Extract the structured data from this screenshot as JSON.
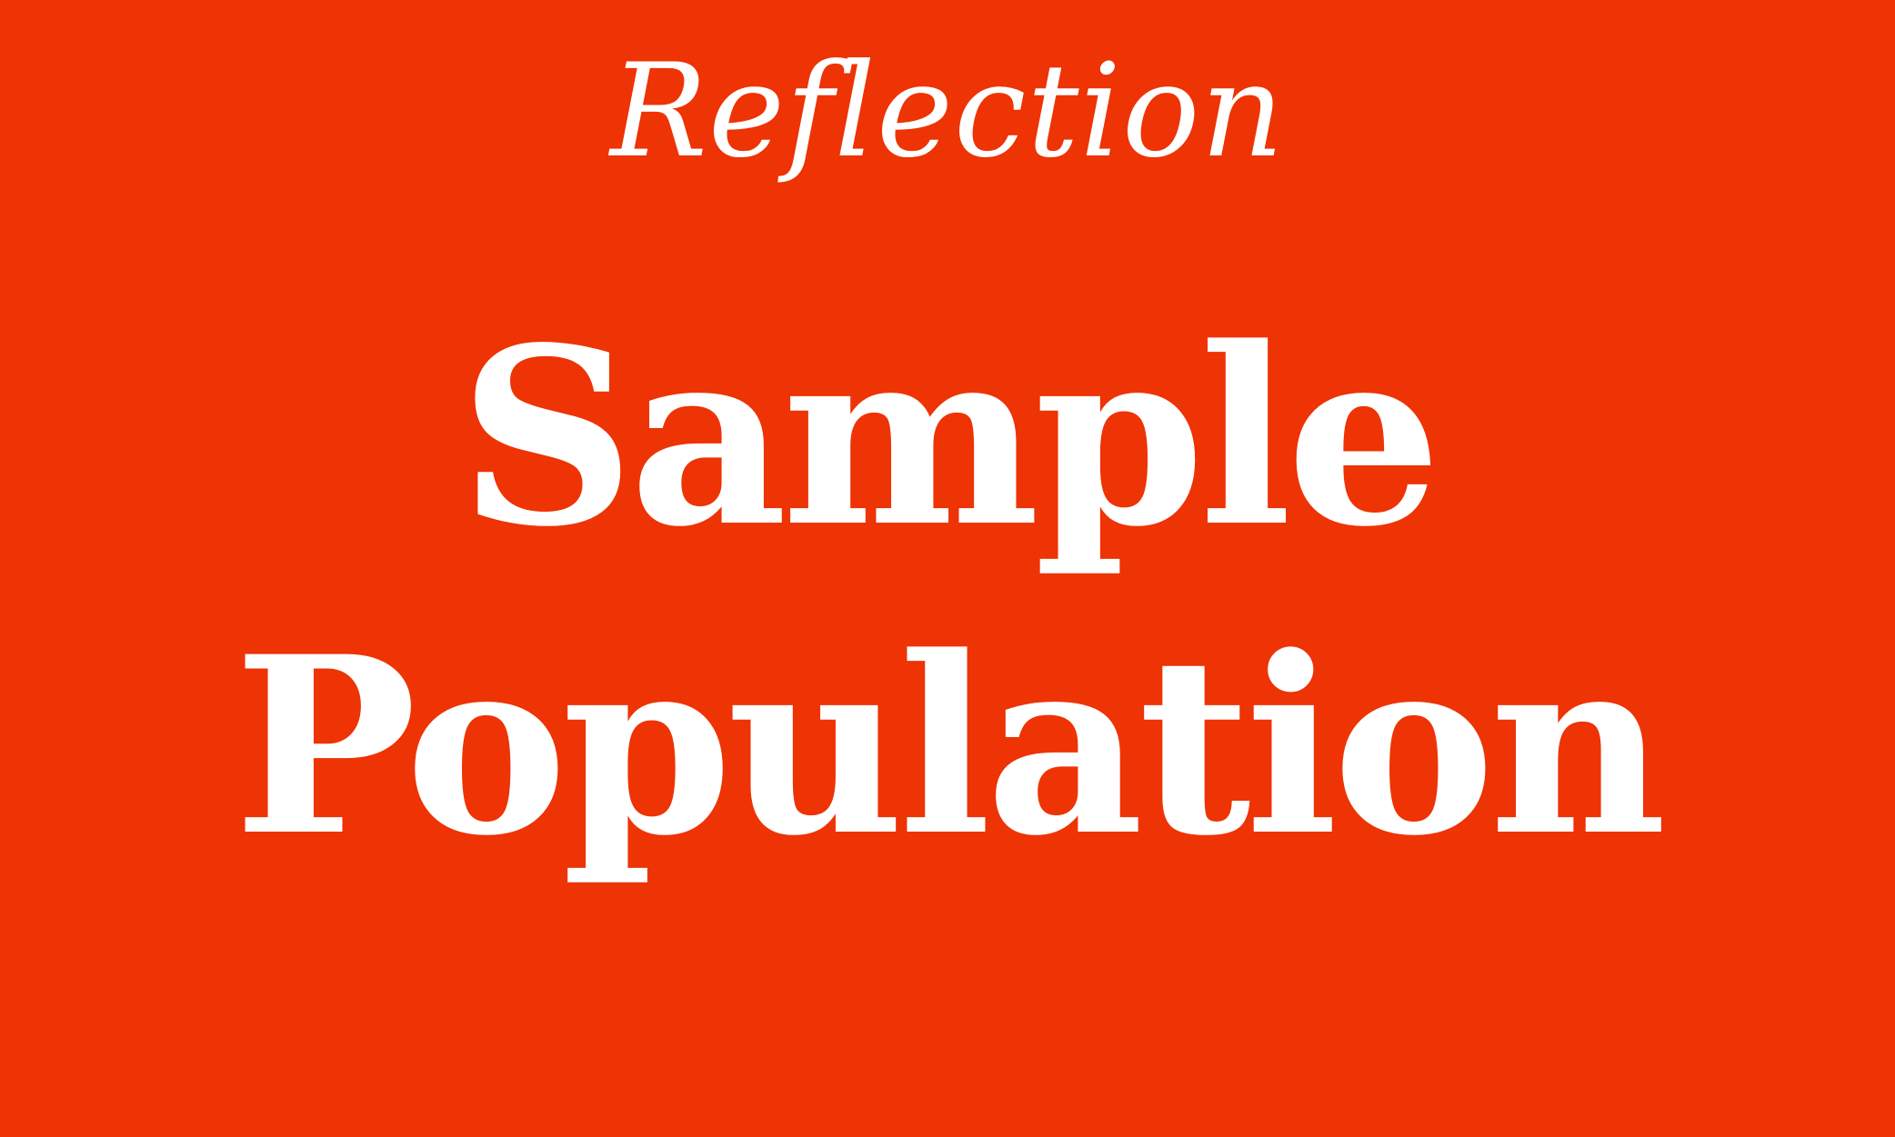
{
  "kicker": "Reflection",
  "headline": {
    "line1": "Sample",
    "line2": "Population"
  },
  "colors": {
    "background": "#ee3304",
    "text": "#ffffff"
  }
}
